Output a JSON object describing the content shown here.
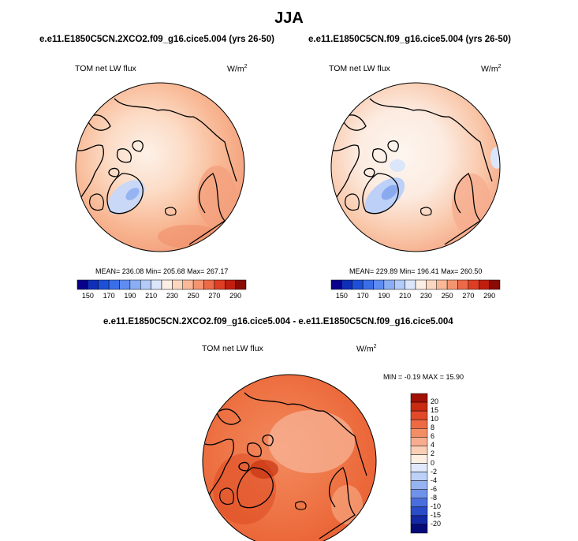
{
  "season": "JJA",
  "colors": {
    "coast": "#000000",
    "land_outline": "#000000"
  },
  "panels": [
    {
      "id": "panel1",
      "case": "e.e11.E1850C5CN.2XCO2.f09_g16.cice5.004 (yrs 26-50)",
      "variable": "TOM net LW flux",
      "units_base": "W/m",
      "units_exp": "2",
      "stats": "MEAN= 236.08   Min= 205.68   Max= 267.17",
      "colorbar_ticks": [
        "150",
        "170",
        "190",
        "210",
        "230",
        "250",
        "270",
        "290"
      ]
    },
    {
      "id": "panel2",
      "case": "e.e11.E1850C5CN.f09_g16.cice5.004 (yrs 26-50)",
      "variable": "TOM net LW flux",
      "units_base": "W/m",
      "units_exp": "2",
      "stats": "MEAN= 229.89   Min= 196.41   Max= 260.50",
      "colorbar_ticks": [
        "150",
        "170",
        "190",
        "210",
        "230",
        "250",
        "270",
        "290"
      ]
    },
    {
      "id": "diff",
      "case": "e.e11.E1850C5CN.2XCO2.f09_g16.cice5.004 - e.e11.E1850C5CN.f09_g16.cice5.004",
      "variable": "TOM net LW flux",
      "units_base": "W/m",
      "units_exp": "2",
      "stats": "MIN =  -0.19 MAX =  15.90",
      "colorbar_ticks": [
        "20",
        "15",
        "10",
        "8",
        "6",
        "4",
        "2",
        "0",
        "-2",
        "-4",
        "-6",
        "-8",
        "-10",
        "-15",
        "-20"
      ]
    }
  ],
  "chart_data": [
    {
      "type": "heatmap",
      "projection": "polar stereographic (North Pole)",
      "title": "e.e11.E1850C5CN.2XCO2.f09_g16.cice5.004 (yrs 26-50)",
      "variable": "TOM net LW flux",
      "units": "W/m2",
      "mean": 236.08,
      "min": 205.68,
      "max": 267.17,
      "contour_levels": [
        150,
        160,
        170,
        180,
        190,
        200,
        210,
        220,
        230,
        240,
        250,
        260,
        270,
        280,
        290
      ],
      "colorbar": {
        "orientation": "horizontal",
        "ticks": [
          150,
          170,
          190,
          210,
          230,
          250,
          270,
          290
        ],
        "colors": [
          "#08008a",
          "#0f2fb8",
          "#1d50d8",
          "#3a6ee6",
          "#5f8cf0",
          "#89aef5",
          "#b3cbf8",
          "#dbe6fb",
          "#fbeee4",
          "#fcd7c0",
          "#f9b896",
          "#f49572",
          "#ec6a48",
          "#de3e24",
          "#c01f10",
          "#8a0a04"
        ]
      }
    },
    {
      "type": "heatmap",
      "projection": "polar stereographic (North Pole)",
      "title": "e.e11.E1850C5CN.f09_g16.cice5.004 (yrs 26-50)",
      "variable": "TOM net LW flux",
      "units": "W/m2",
      "mean": 229.89,
      "min": 196.41,
      "max": 260.5,
      "contour_levels": [
        150,
        160,
        170,
        180,
        190,
        200,
        210,
        220,
        230,
        240,
        250,
        260,
        270,
        280,
        290
      ],
      "colorbar": {
        "orientation": "horizontal",
        "ticks": [
          150,
          170,
          190,
          210,
          230,
          250,
          270,
          290
        ],
        "colors": [
          "#08008a",
          "#0f2fb8",
          "#1d50d8",
          "#3a6ee6",
          "#5f8cf0",
          "#89aef5",
          "#b3cbf8",
          "#dbe6fb",
          "#fbeee4",
          "#fcd7c0",
          "#f9b896",
          "#f49572",
          "#ec6a48",
          "#de3e24",
          "#c01f10",
          "#8a0a04"
        ]
      }
    },
    {
      "type": "heatmap",
      "projection": "polar stereographic (North Pole)",
      "title": "e.e11.E1850C5CN.2XCO2.f09_g16.cice5.004 - e.e11.E1850C5CN.f09_g16.cice5.004",
      "variable": "TOM net LW flux",
      "units": "W/m2",
      "min": -0.19,
      "max": 15.9,
      "contour_levels": [
        -20,
        -15,
        -10,
        -8,
        -6,
        -4,
        -2,
        0,
        2,
        4,
        6,
        8,
        10,
        15,
        20
      ],
      "colorbar": {
        "orientation": "vertical",
        "ticks": [
          20,
          15,
          10,
          8,
          6,
          4,
          2,
          0,
          -2,
          -4,
          -6,
          -8,
          -10,
          -15,
          -20
        ],
        "colors": [
          "#a01005",
          "#c92a12",
          "#e2492a",
          "#ed6a44",
          "#f38d66",
          "#f7ad8d",
          "#fbcfb5",
          "#fdeee2",
          "#dfe9fb",
          "#bcd0f8",
          "#97b4f2",
          "#6f92ea",
          "#4a6edd",
          "#2a4cc8",
          "#1328a4",
          "#050a78"
        ]
      }
    }
  ]
}
